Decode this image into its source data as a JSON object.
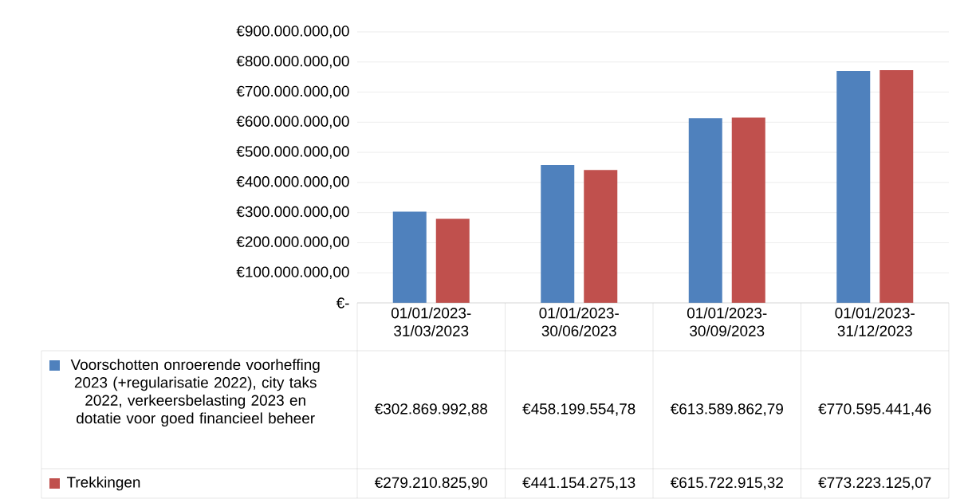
{
  "chart_data": {
    "type": "bar",
    "categories": [
      "01/01/2023-31/03/2023",
      "01/01/2023-30/06/2023",
      "01/01/2023-30/09/2023",
      "01/01/2023-31/12/2023"
    ],
    "series": [
      {
        "name": "Voorschotten onroerende voorheffing 2023 (+regularisatie 2022), city taks 2022, verkeersbelasting 2023 en dotatie voor goed financieel beheer",
        "color": "#4f81bd",
        "values": [
          302869992.88,
          458199554.78,
          613589862.79,
          770595441.46
        ],
        "value_labels": [
          "€302.869.992,88",
          "€458.199.554,78",
          "€613.589.862,79",
          "€770.595.441,46"
        ]
      },
      {
        "name": "Trekkingen",
        "color": "#c0504d",
        "values": [
          279210825.9,
          441154275.13,
          615722915.32,
          773223125.07
        ],
        "value_labels": [
          "€279.210.825,90",
          "€441.154.275,13",
          "€615.722.915,32",
          "€773.223.125,07"
        ]
      }
    ],
    "ylim": [
      0,
      900000000
    ],
    "yticks": [
      {
        "value": 0,
        "label": "€-"
      },
      {
        "value": 100000000,
        "label": "€100.000.000,00"
      },
      {
        "value": 200000000,
        "label": "€200.000.000,00"
      },
      {
        "value": 300000000,
        "label": "€300.000.000,00"
      },
      {
        "value": 400000000,
        "label": "€400.000.000,00"
      },
      {
        "value": 500000000,
        "label": "€500.000.000,00"
      },
      {
        "value": 600000000,
        "label": "€600.000.000,00"
      },
      {
        "value": 700000000,
        "label": "€700.000.000,00"
      },
      {
        "value": 800000000,
        "label": "€800.000.000,00"
      },
      {
        "value": 900000000,
        "label": "€900.000.000,00"
      }
    ],
    "grid": "y",
    "legend": "bottom"
  }
}
